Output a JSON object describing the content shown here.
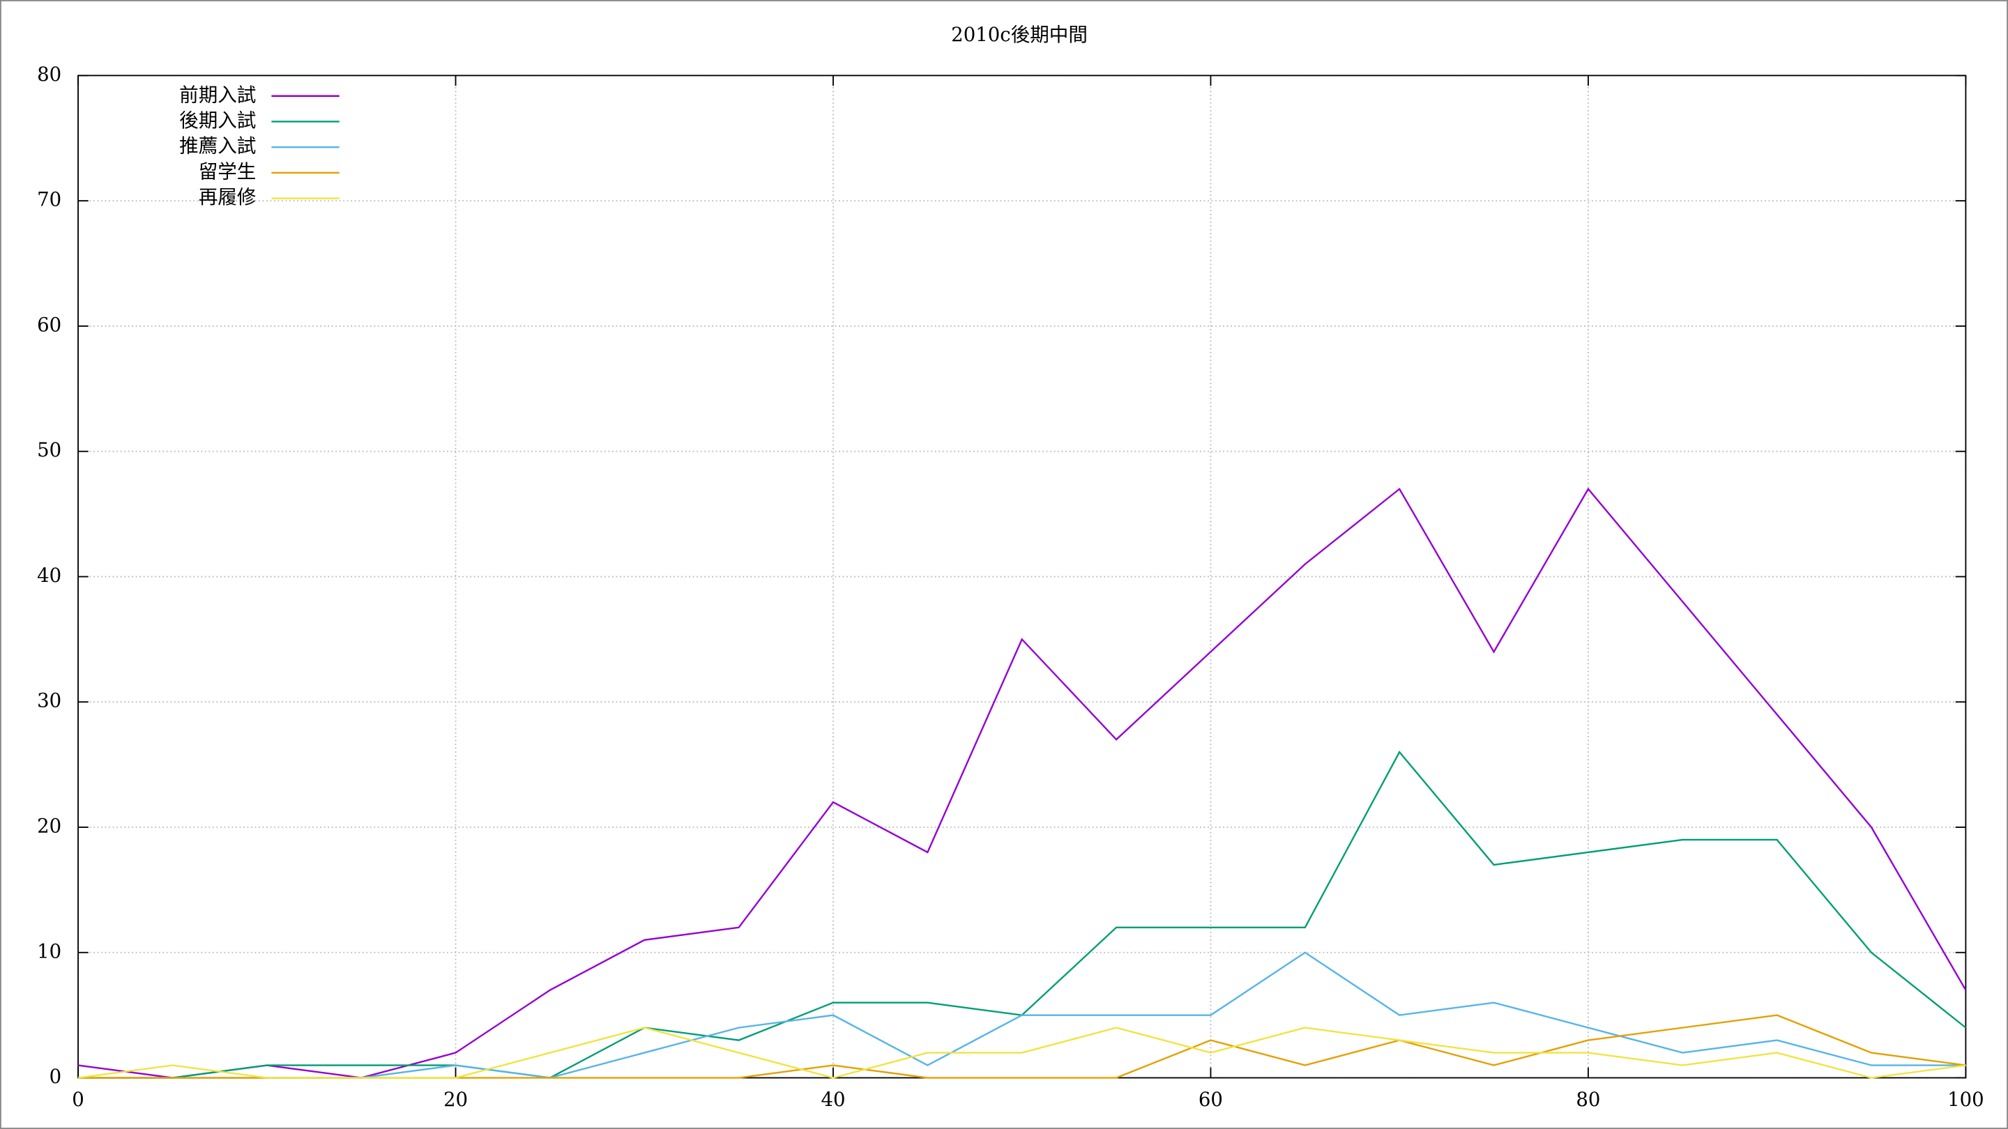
{
  "chart_data": {
    "type": "line",
    "title": "2010c後期中間",
    "x": [
      0,
      5,
      10,
      15,
      20,
      25,
      30,
      35,
      40,
      45,
      50,
      55,
      60,
      65,
      70,
      75,
      80,
      85,
      90,
      95,
      100
    ],
    "series": [
      {
        "name": "前期入試",
        "color": "#9400d3",
        "values": [
          1,
          0,
          1,
          0,
          2,
          7,
          11,
          12,
          22,
          18,
          35,
          27,
          34,
          41,
          47,
          34,
          47,
          38,
          29,
          20,
          7
        ]
      },
      {
        "name": "後期入試",
        "color": "#009e73",
        "values": [
          0,
          0,
          1,
          1,
          1,
          0,
          4,
          3,
          6,
          6,
          5,
          12,
          12,
          12,
          26,
          17,
          18,
          19,
          19,
          10,
          4
        ]
      },
      {
        "name": "推薦入試",
        "color": "#56b4e9",
        "values": [
          0,
          0,
          0,
          0,
          1,
          0,
          2,
          4,
          5,
          1,
          5,
          5,
          5,
          10,
          5,
          6,
          4,
          2,
          3,
          1,
          1
        ]
      },
      {
        "name": "留学生",
        "color": "#e69f00",
        "values": [
          0,
          0,
          0,
          0,
          0,
          0,
          0,
          0,
          1,
          0,
          0,
          0,
          3,
          1,
          3,
          1,
          3,
          4,
          5,
          2,
          1
        ]
      },
      {
        "name": "再履修",
        "color": "#f0e442",
        "values": [
          0,
          1,
          0,
          0,
          0,
          2,
          4,
          2,
          0,
          2,
          2,
          4,
          2,
          4,
          3,
          2,
          2,
          1,
          2,
          0,
          1
        ]
      }
    ],
    "xlim": [
      0,
      100
    ],
    "xticks": [
      0,
      20,
      40,
      60,
      80,
      100
    ],
    "ylim": [
      0,
      80
    ],
    "yticks": [
      0,
      10,
      20,
      30,
      40,
      50,
      60,
      70,
      80
    ],
    "grid": true,
    "legend": "top-left"
  }
}
